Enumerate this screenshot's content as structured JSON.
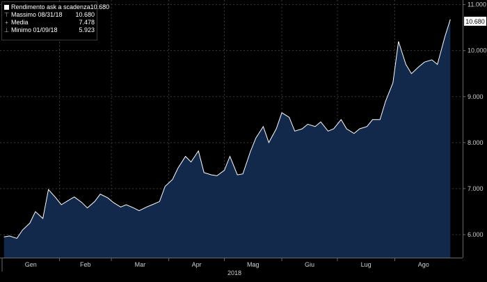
{
  "chart_data": {
    "type": "area",
    "year_label": "2018",
    "x_tick_labels": [
      "Gen",
      "Feb",
      "Mar",
      "Apr",
      "Mag",
      "Giu",
      "Lug",
      "Ago"
    ],
    "y_tick_labels": [
      "6.000",
      "7.000",
      "8.000",
      "9.000",
      "10.000",
      "11.000"
    ],
    "ylim": [
      5.5,
      11.1
    ],
    "grid": "dashed",
    "legend_position": "top-left",
    "last_value_label": "10.680",
    "colors": {
      "background": "#000000",
      "area_fill": "#13294b",
      "line": "#ffffff",
      "grid": "#3a3a3a",
      "tag_bg": "#ffffff",
      "tag_text": "#000000"
    },
    "legend": [
      {
        "label": "Rendimento ask a scadenza",
        "value": "10.680",
        "marker": "square"
      },
      {
        "label": "Massimo 08/31/18",
        "value": "10.680",
        "marker": "max"
      },
      {
        "label": "Media",
        "value": "7.478",
        "marker": "avg"
      },
      {
        "label": "Minimo 01/09/18",
        "value": "5.923",
        "marker": "min"
      }
    ],
    "series": [
      {
        "x": [
          "2018-01-02",
          "2018-01-05",
          "2018-01-09",
          "2018-01-12",
          "2018-01-16",
          "2018-01-19",
          "2018-01-23",
          "2018-01-26",
          "2018-01-30",
          "2018-02-02",
          "2018-02-06",
          "2018-02-09",
          "2018-02-13",
          "2018-02-16",
          "2018-02-20",
          "2018-02-23",
          "2018-02-27",
          "2018-03-02",
          "2018-03-06",
          "2018-03-09",
          "2018-03-13",
          "2018-03-16",
          "2018-03-20",
          "2018-03-23",
          "2018-03-27",
          "2018-03-30",
          "2018-04-03",
          "2018-04-06",
          "2018-04-10",
          "2018-04-13",
          "2018-04-17",
          "2018-04-20",
          "2018-04-24",
          "2018-04-27",
          "2018-05-01",
          "2018-05-04",
          "2018-05-08",
          "2018-05-11",
          "2018-05-15",
          "2018-05-18",
          "2018-05-22",
          "2018-05-25",
          "2018-05-29",
          "2018-06-01",
          "2018-06-05",
          "2018-06-08",
          "2018-06-12",
          "2018-06-15",
          "2018-06-19",
          "2018-06-22",
          "2018-06-26",
          "2018-06-29",
          "2018-07-03",
          "2018-07-06",
          "2018-07-10",
          "2018-07-13",
          "2018-07-17",
          "2018-07-20",
          "2018-07-24",
          "2018-07-27",
          "2018-07-31",
          "2018-08-03",
          "2018-08-07",
          "2018-08-10",
          "2018-08-14",
          "2018-08-17",
          "2018-08-21",
          "2018-08-24",
          "2018-08-28",
          "2018-08-31"
        ],
        "values": [
          5.95,
          5.97,
          5.92,
          6.1,
          6.25,
          6.5,
          6.35,
          6.98,
          6.8,
          6.65,
          6.75,
          6.82,
          6.7,
          6.58,
          6.72,
          6.88,
          6.8,
          6.7,
          6.6,
          6.65,
          6.58,
          6.52,
          6.6,
          6.65,
          6.72,
          7.05,
          7.2,
          7.45,
          7.7,
          7.58,
          7.82,
          7.35,
          7.3,
          7.28,
          7.4,
          7.7,
          7.3,
          7.32,
          7.8,
          8.1,
          8.35,
          8.0,
          8.3,
          8.65,
          8.55,
          8.25,
          8.3,
          8.4,
          8.35,
          8.45,
          8.25,
          8.3,
          8.5,
          8.3,
          8.2,
          8.3,
          8.35,
          8.5,
          8.5,
          8.9,
          9.3,
          10.2,
          9.7,
          9.5,
          9.65,
          9.75,
          9.8,
          9.7,
          10.3,
          10.68
        ]
      }
    ]
  }
}
